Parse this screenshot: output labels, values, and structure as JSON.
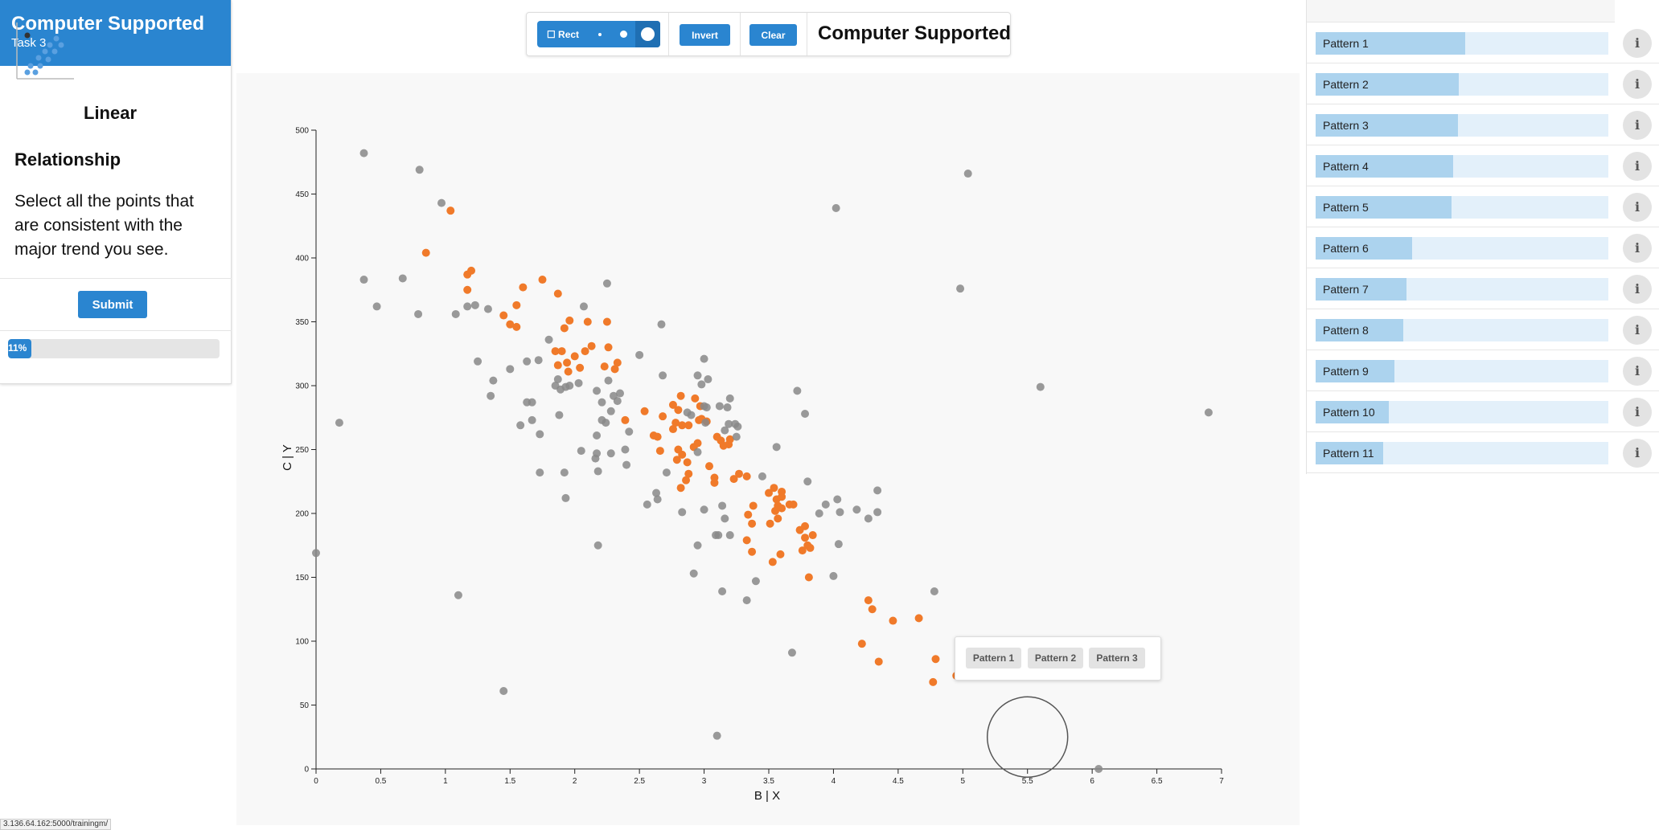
{
  "task": {
    "title": "Computer Supported",
    "subtitle": "Task 3",
    "type_word1": "Linear",
    "type_word2": "Relationship",
    "instructions": "Select all the points that are consistent with the major trend you see.",
    "submit_label": "Submit",
    "progress_label": "11%",
    "progress_fraction": 0.11
  },
  "toolbar": {
    "rect_label": "☐ Rect",
    "invert_label": "Invert",
    "clear_label": "Clear",
    "dataset_name": "Computer Supported"
  },
  "colors": {
    "accent": "#2a85d0",
    "selected_point": "#f07a2a",
    "unselected_point": "#888888"
  },
  "popup": {
    "buttons": [
      "Pattern 1",
      "Pattern 2",
      "Pattern 3"
    ]
  },
  "patterns": [
    {
      "label": "Pattern 1",
      "score": 0.51
    },
    {
      "label": "Pattern 2",
      "score": 0.49
    },
    {
      "label": "Pattern 3",
      "score": 0.485
    },
    {
      "label": "Pattern 4",
      "score": 0.47
    },
    {
      "label": "Pattern 5",
      "score": 0.465
    },
    {
      "label": "Pattern 6",
      "score": 0.33
    },
    {
      "label": "Pattern 7",
      "score": 0.31
    },
    {
      "label": "Pattern 8",
      "score": 0.3
    },
    {
      "label": "Pattern 9",
      "score": 0.27
    },
    {
      "label": "Pattern 10",
      "score": 0.25
    },
    {
      "label": "Pattern 11",
      "score": 0.23
    }
  ],
  "status_url": "3.136.64.162:5000/trainingm/",
  "chart_data": {
    "type": "scatter",
    "xlabel": "B | X",
    "ylabel": "C | Y",
    "xlim": [
      0,
      7
    ],
    "ylim": [
      0,
      500
    ],
    "xticks": [
      "0",
      "0.5",
      "1",
      "1.5",
      "2",
      "2.5",
      "3",
      "3.5",
      "4",
      "4.5",
      "5",
      "5.5",
      "6",
      "6.5",
      "7"
    ],
    "yticks": [
      "0",
      "50",
      "100",
      "150",
      "200",
      "250",
      "300",
      "350",
      "400",
      "450",
      "500"
    ],
    "brush_center": [
      5.5,
      25
    ],
    "series": [
      {
        "name": "selected",
        "color": "#f07a2a",
        "points": [
          [
            1.04,
            437
          ],
          [
            0.85,
            404
          ],
          [
            1.17,
            387
          ],
          [
            1.2,
            390
          ],
          [
            1.17,
            375
          ],
          [
            1.6,
            377
          ],
          [
            1.75,
            383
          ],
          [
            1.87,
            372
          ],
          [
            1.45,
            355
          ],
          [
            1.55,
            363
          ],
          [
            1.5,
            348
          ],
          [
            1.55,
            346
          ],
          [
            1.92,
            345
          ],
          [
            1.96,
            351
          ],
          [
            2.1,
            350
          ],
          [
            2.25,
            350
          ],
          [
            1.85,
            327
          ],
          [
            1.9,
            327
          ],
          [
            2.0,
            323
          ],
          [
            2.08,
            327
          ],
          [
            2.13,
            331
          ],
          [
            2.26,
            330
          ],
          [
            1.87,
            316
          ],
          [
            1.94,
            318
          ],
          [
            2.04,
            314
          ],
          [
            2.23,
            315
          ],
          [
            2.33,
            318
          ],
          [
            2.31,
            313
          ],
          [
            1.95,
            311
          ],
          [
            2.39,
            273
          ],
          [
            2.54,
            280
          ],
          [
            2.68,
            276
          ],
          [
            2.61,
            261
          ],
          [
            2.64,
            260
          ],
          [
            2.66,
            249
          ],
          [
            2.76,
            285
          ],
          [
            2.8,
            281
          ],
          [
            2.82,
            292
          ],
          [
            2.93,
            290
          ],
          [
            2.97,
            284
          ],
          [
            2.78,
            271
          ],
          [
            2.83,
            269
          ],
          [
            2.76,
            266
          ],
          [
            2.88,
            269
          ],
          [
            2.96,
            273
          ],
          [
            2.98,
            274
          ],
          [
            3.02,
            272
          ],
          [
            2.8,
            250
          ],
          [
            2.83,
            246
          ],
          [
            2.79,
            242
          ],
          [
            2.87,
            240
          ],
          [
            2.92,
            252
          ],
          [
            2.95,
            255
          ],
          [
            3.13,
            257
          ],
          [
            3.15,
            253
          ],
          [
            3.19,
            254
          ],
          [
            3.2,
            258
          ],
          [
            3.27,
            231
          ],
          [
            3.23,
            227
          ],
          [
            3.33,
            229
          ],
          [
            3.04,
            237
          ],
          [
            2.86,
            226
          ],
          [
            2.88,
            231
          ],
          [
            2.82,
            220
          ],
          [
            3.08,
            228
          ],
          [
            3.08,
            224
          ],
          [
            3.1,
            260
          ],
          [
            3.34,
            199
          ],
          [
            3.38,
            206
          ],
          [
            3.37,
            192
          ],
          [
            3.33,
            179
          ],
          [
            3.37,
            170
          ],
          [
            3.5,
            216
          ],
          [
            3.54,
            220
          ],
          [
            3.56,
            211
          ],
          [
            3.57,
            206
          ],
          [
            3.6,
            217
          ],
          [
            3.6,
            213
          ],
          [
            3.6,
            204
          ],
          [
            3.55,
            202
          ],
          [
            3.66,
            207
          ],
          [
            3.69,
            207
          ],
          [
            3.51,
            192
          ],
          [
            3.57,
            196
          ],
          [
            3.74,
            187
          ],
          [
            3.78,
            190
          ],
          [
            3.78,
            181
          ],
          [
            3.84,
            183
          ],
          [
            3.76,
            171
          ],
          [
            3.82,
            173
          ],
          [
            3.8,
            175
          ],
          [
            3.53,
            162
          ],
          [
            3.59,
            168
          ],
          [
            3.81,
            150
          ],
          [
            4.27,
            132
          ],
          [
            4.3,
            125
          ],
          [
            4.46,
            116
          ],
          [
            4.66,
            118
          ],
          [
            4.22,
            98
          ],
          [
            4.35,
            84
          ],
          [
            4.77,
            68
          ],
          [
            4.79,
            86
          ],
          [
            4.95,
            73
          ]
        ]
      },
      {
        "name": "unselected",
        "color": "#888888",
        "points": [
          [
            0.37,
            482
          ],
          [
            0.8,
            469
          ],
          [
            0.97,
            443
          ],
          [
            0.37,
            383
          ],
          [
            0.47,
            362
          ],
          [
            0.67,
            384
          ],
          [
            0.79,
            356
          ],
          [
            1.08,
            356
          ],
          [
            1.17,
            362
          ],
          [
            1.23,
            363
          ],
          [
            1.33,
            360
          ],
          [
            2.25,
            380
          ],
          [
            2.07,
            362
          ],
          [
            2.67,
            348
          ],
          [
            1.25,
            319
          ],
          [
            1.37,
            304
          ],
          [
            1.35,
            292
          ],
          [
            1.5,
            313
          ],
          [
            1.63,
            319
          ],
          [
            1.63,
            287
          ],
          [
            1.72,
            320
          ],
          [
            1.8,
            336
          ],
          [
            1.85,
            300
          ],
          [
            1.87,
            305
          ],
          [
            1.89,
            297
          ],
          [
            1.93,
            299
          ],
          [
            1.96,
            300
          ],
          [
            2.03,
            302
          ],
          [
            2.17,
            296
          ],
          [
            2.21,
            287
          ],
          [
            2.26,
            304
          ],
          [
            2.3,
            292
          ],
          [
            2.33,
            288
          ],
          [
            2.35,
            294
          ],
          [
            2.28,
            280
          ],
          [
            1.67,
            273
          ],
          [
            1.73,
            262
          ],
          [
            1.88,
            277
          ],
          [
            2.21,
            273
          ],
          [
            2.24,
            271
          ],
          [
            2.28,
            247
          ],
          [
            2.17,
            247
          ],
          [
            2.16,
            243
          ],
          [
            2.05,
            249
          ],
          [
            2.17,
            261
          ],
          [
            2.4,
            238
          ],
          [
            2.42,
            264
          ],
          [
            2.39,
            250
          ],
          [
            2.5,
            324
          ],
          [
            2.68,
            308
          ],
          [
            2.95,
            308
          ],
          [
            2.98,
            301
          ],
          [
            3.0,
            321
          ],
          [
            3.03,
            305
          ],
          [
            3.12,
            284
          ],
          [
            3.18,
            283
          ],
          [
            3.2,
            290
          ],
          [
            3.0,
            284
          ],
          [
            3.02,
            283
          ],
          [
            3.01,
            271
          ],
          [
            3.19,
            270
          ],
          [
            3.24,
            270
          ],
          [
            3.25,
            260
          ],
          [
            3.26,
            268
          ],
          [
            3.16,
            265
          ],
          [
            2.9,
            277
          ],
          [
            2.87,
            279
          ],
          [
            1.92,
            232
          ],
          [
            2.18,
            233
          ],
          [
            2.71,
            232
          ],
          [
            2.63,
            216
          ],
          [
            2.56,
            207
          ],
          [
            2.64,
            211
          ],
          [
            2.95,
            248
          ],
          [
            2.83,
            201
          ],
          [
            3.14,
            206
          ],
          [
            3.16,
            196
          ],
          [
            3.09,
            183
          ],
          [
            3.11,
            183
          ],
          [
            3.2,
            183
          ],
          [
            3.0,
            203
          ],
          [
            3.45,
            229
          ],
          [
            3.56,
            252
          ],
          [
            3.78,
            278
          ],
          [
            3.72,
            296
          ],
          [
            3.8,
            225
          ],
          [
            3.94,
            207
          ],
          [
            4.03,
            211
          ],
          [
            4.05,
            201
          ],
          [
            4.18,
            203
          ],
          [
            4.27,
            196
          ],
          [
            4.34,
            201
          ],
          [
            4.34,
            218
          ],
          [
            1.93,
            212
          ],
          [
            2.18,
            175
          ],
          [
            2.95,
            175
          ],
          [
            2.92,
            153
          ],
          [
            3.14,
            139
          ],
          [
            3.33,
            132
          ],
          [
            3.4,
            147
          ],
          [
            3.89,
            200
          ],
          [
            4.04,
            176
          ],
          [
            4.0,
            151
          ],
          [
            4.78,
            139
          ],
          [
            3.68,
            91
          ],
          [
            1.73,
            232
          ],
          [
            1.58,
            269
          ],
          [
            1.67,
            287
          ],
          [
            1.1,
            136
          ],
          [
            1.45,
            61
          ],
          [
            0.18,
            271
          ],
          [
            0.0,
            169
          ],
          [
            3.1,
            26
          ],
          [
            4.02,
            439
          ],
          [
            5.04,
            466
          ],
          [
            4.98,
            376
          ],
          [
            5.6,
            299
          ],
          [
            6.9,
            279
          ],
          [
            6.05,
            0
          ]
        ]
      }
    ]
  }
}
